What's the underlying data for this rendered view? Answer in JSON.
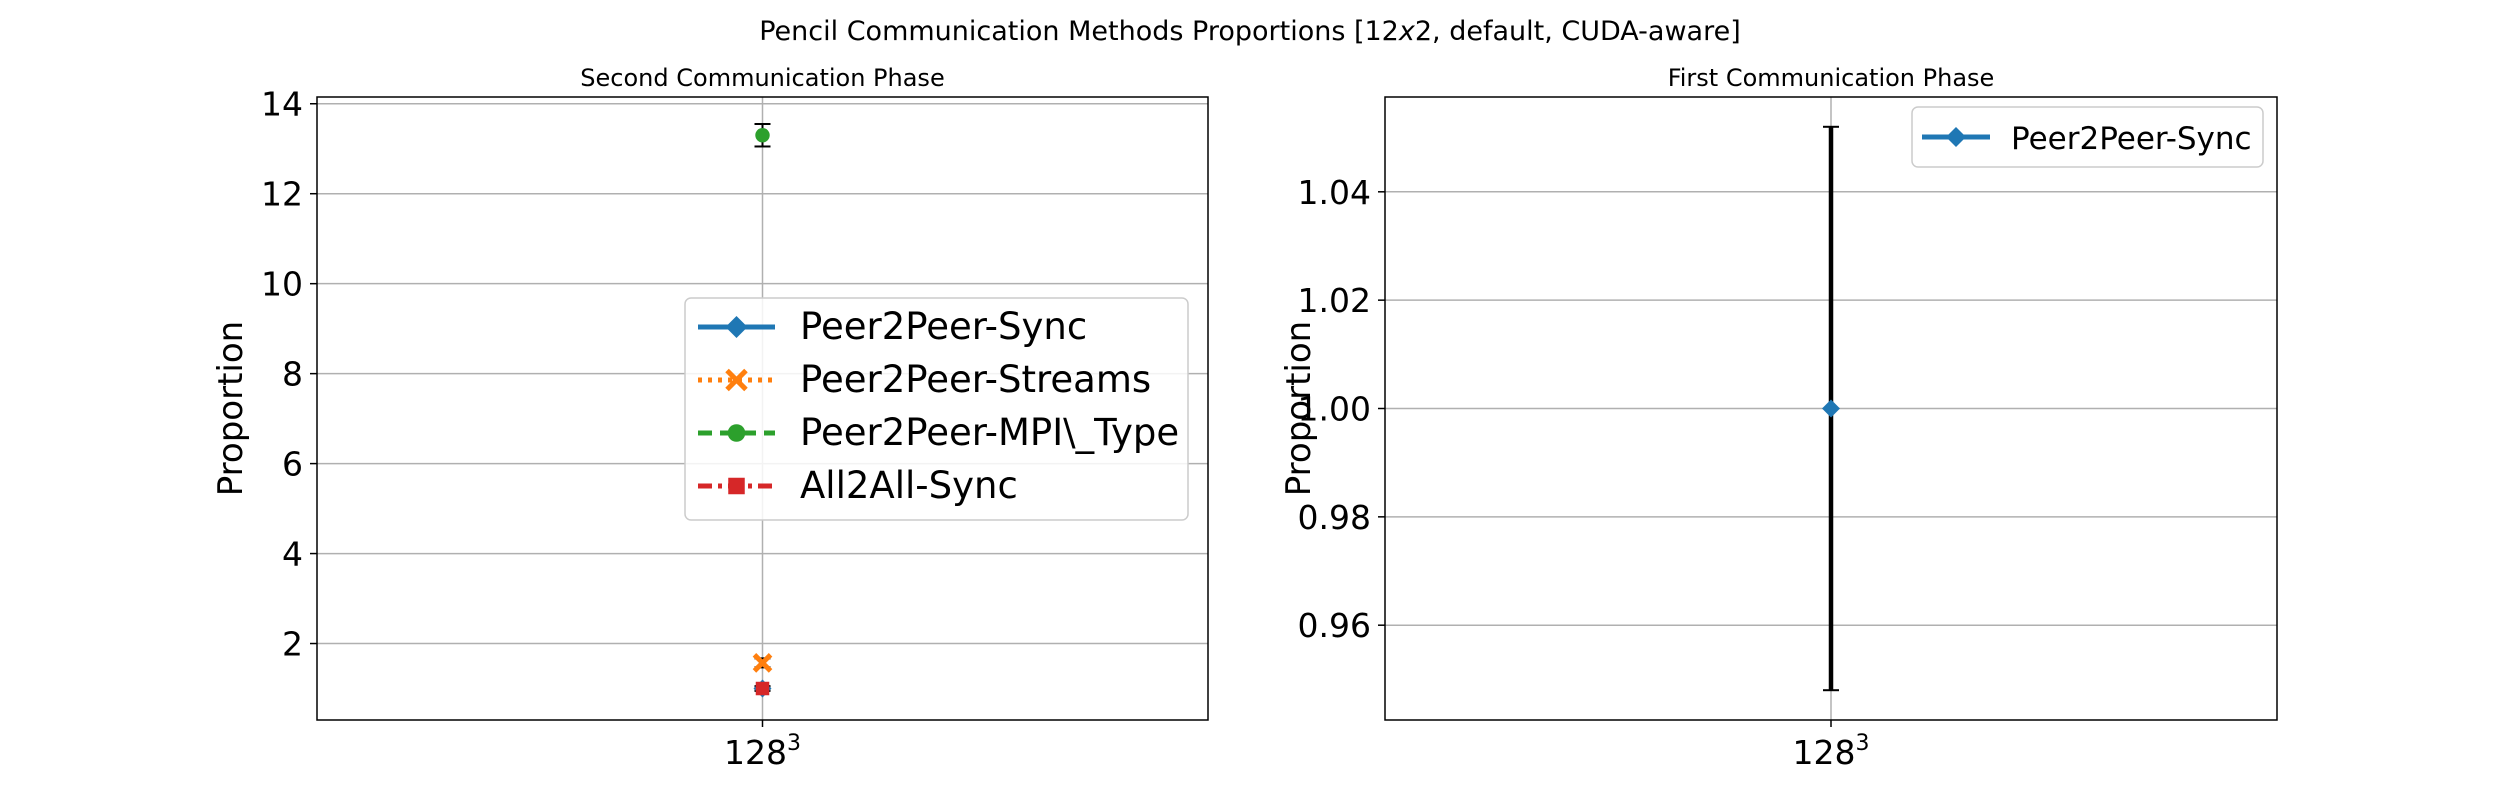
{
  "figure": {
    "suptitle_parts": [
      "Pencil Communication Methods Proportions [12",
      "x",
      "2, default, CUDA-aware]"
    ]
  },
  "chart_data": [
    {
      "type": "scatter",
      "title": "Second Communication Phase",
      "ylabel": "Proportion",
      "xlabel": "",
      "x_tick_base": "128",
      "x_tick_exp": "3",
      "ylim": [
        0.3,
        14.15
      ],
      "yticks": [
        2,
        4,
        6,
        8,
        10,
        12,
        14
      ],
      "grid": true,
      "legend_position": "center-right",
      "series": [
        {
          "name": "Peer2Peer-Sync",
          "color": "#1f77b4",
          "marker": "diamond",
          "line": "solid",
          "value": 1.0,
          "err": 0.05
        },
        {
          "name": "Peer2Peer-Streams",
          "color": "#ff7f0e",
          "marker": "x",
          "line": "dotted",
          "value": 1.57,
          "err": 0.1
        },
        {
          "name": "Peer2Peer-MPI\\_Type",
          "color": "#2ca02c",
          "marker": "circle",
          "line": "dashed",
          "value": 13.3,
          "err": 0.25
        },
        {
          "name": "All2All-Sync",
          "color": "#d62728",
          "marker": "square",
          "line": "dashdot",
          "value": 1.0,
          "err": 0.05
        }
      ]
    },
    {
      "type": "scatter",
      "title": "First Communication Phase",
      "ylabel": "Proportion",
      "xlabel": "",
      "x_tick_base": "128",
      "x_tick_exp": "3",
      "ylim": [
        0.9425,
        1.0575
      ],
      "yticks": [
        "0.96",
        "0.98",
        "1.00",
        "1.02",
        "1.04"
      ],
      "grid": true,
      "legend_position": "top-right",
      "series": [
        {
          "name": "Peer2Peer-Sync",
          "color": "#1f77b4",
          "marker": "diamond",
          "line": "solid",
          "value": 1.0,
          "err": 0.052
        }
      ]
    }
  ]
}
